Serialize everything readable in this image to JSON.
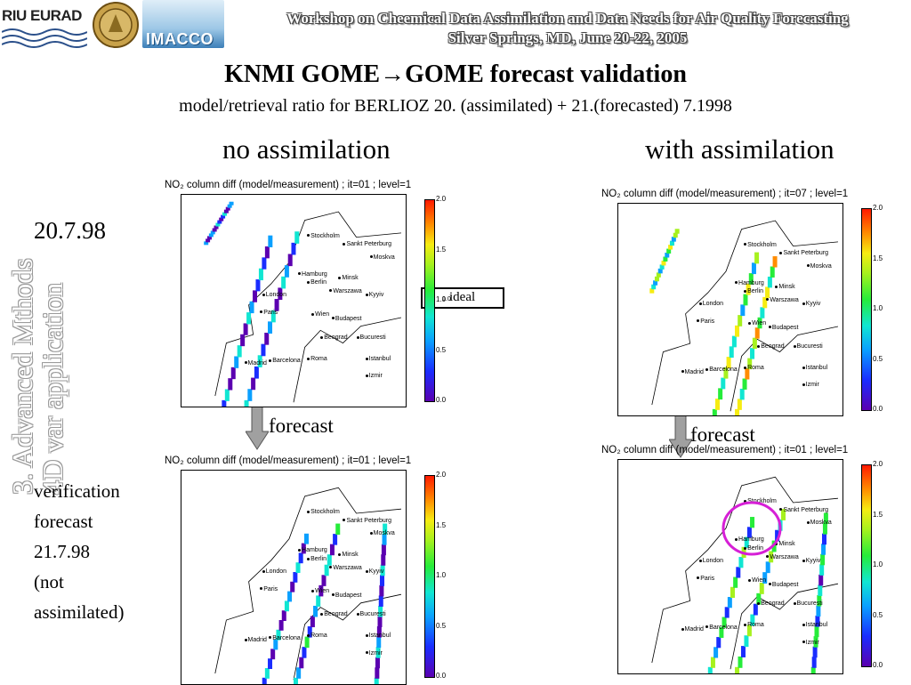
{
  "header": {
    "logos": {
      "riu": "RIU EURAD",
      "imacco": "IMACCO"
    },
    "line1": "Workshop on Cheemical Data Assimilation and Data Needs for Air Quality Forecasting",
    "line2": "Silver Springs, MD, June 20-22, 2005"
  },
  "title": "KNMI GOME→GOME forecast validation",
  "subtitle": "model/retrieval ratio for BERLIOZ 20. (assimilated) + 21.(forecasted)  7.1998",
  "columns": {
    "left": "no assimilation",
    "right": "with assimilation"
  },
  "side_vertical": {
    "line1": "3. Advanced Mthods",
    "line2": "4D var application"
  },
  "date_label": "20.7.98",
  "verification": [
    "verification",
    "forecast",
    "21.7.98",
    "(not",
    "assimilated)"
  ],
  "ideal_label": "ideal",
  "ideal_tick": "1.0",
  "forecast_label": "forecast",
  "colorbar_ticks": [
    "2.0",
    "1.5",
    "1.0",
    "0.5",
    "0.0"
  ],
  "cities": [
    "Stockholm",
    "Sankt Peterburg",
    "Moskva",
    "Minsk",
    "Hamburg",
    "Berlin",
    "Warszawa",
    "Kyyiv",
    "London",
    "Paris",
    "Wien",
    "Budapest",
    "Beograd",
    "Bucuresti",
    "Madrid",
    "Barcelona",
    "Roma",
    "Istanbul",
    "Izmir"
  ],
  "panels": [
    {
      "id": "tl",
      "title": "NO₂ column diff (model/measurement) ; it=01  ; level=1"
    },
    {
      "id": "tr",
      "title": "NO₂ column diff (model/measurement) ; it=07  ; level=1"
    },
    {
      "id": "bl",
      "title": "NO₂ column diff (model/measurement) ; it=01  ; level=1"
    },
    {
      "id": "br",
      "title": "NO₂ column diff (model/measurement) ; it=01  ; level=1"
    }
  ],
  "colors": {
    "highlight_circle": "#d61fd6",
    "arrow": "#a0a0a0"
  }
}
